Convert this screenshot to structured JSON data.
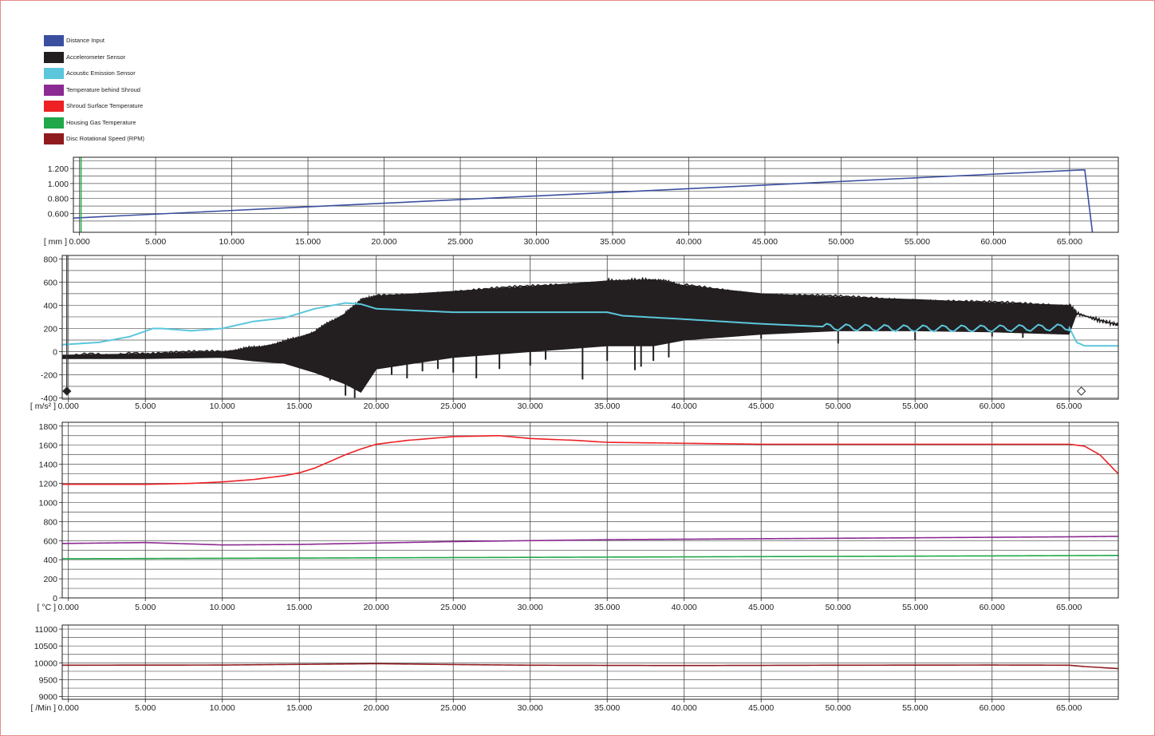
{
  "legend": [
    {
      "label": "Distance Input",
      "color": "#3a4fa0"
    },
    {
      "label": "Accelerometer Sensor",
      "color": "#231f20"
    },
    {
      "label": "Acoustic Emission Sensor",
      "color": "#5bc6dc"
    },
    {
      "label": "Temperature behind Shroud",
      "color": "#8b2a92"
    },
    {
      "label": "Shroud Surface Temperature",
      "color": "#ed2024"
    },
    {
      "label": "Housing Gas Temperature",
      "color": "#20a84a"
    },
    {
      "label": "Disc Rotational Speed (RPM)",
      "color": "#8f1b1f"
    }
  ],
  "chart_data": [
    {
      "type": "line",
      "unit_label": "[ mm ]",
      "xlim": [
        -0.4,
        68.2
      ],
      "ylim": [
        0.35,
        1.35
      ],
      "yticks": [
        0.6,
        0.8,
        1.0,
        1.2
      ],
      "ytick_labels": [
        "0.600",
        "0.800",
        "1.000",
        "1.200"
      ],
      "xticks": [
        0,
        5,
        10,
        15,
        20,
        25,
        30,
        35,
        40,
        45,
        50,
        55,
        60,
        65
      ],
      "xtick_labels": [
        "0.000",
        "5.000",
        "10.000",
        "15.000",
        "20.000",
        "25.000",
        "30.000",
        "35.000",
        "40.000",
        "45.000",
        "50.000",
        "55.000",
        "60.000",
        "65.000"
      ],
      "series": [
        {
          "name": "Distance Input",
          "color": "#3a4fa0",
          "x": [
            -0.4,
            65.7,
            66.0,
            66.5
          ],
          "y": [
            0.54,
            1.18,
            1.18,
            0.35
          ]
        }
      ],
      "marker_line": {
        "x": 0.1,
        "color": "#20a84a"
      }
    },
    {
      "type": "line",
      "unit_label": "[ m/s² ]",
      "xlim": [
        -0.4,
        68.2
      ],
      "ylim": [
        -410,
        830
      ],
      "yticks": [
        -400,
        -200,
        0,
        200,
        400,
        600,
        800
      ],
      "ytick_labels": [
        "-400",
        "-200",
        "0",
        "200",
        "400",
        "600",
        "800"
      ],
      "xticks": [
        0,
        5,
        10,
        15,
        20,
        25,
        30,
        35,
        40,
        45,
        50,
        55,
        60,
        65
      ],
      "xtick_labels": [
        "0.000",
        "5.000",
        "10.000",
        "15.000",
        "20.000",
        "25.000",
        "30.000",
        "35.000",
        "40.000",
        "45.000",
        "50.000",
        "55.000",
        "60.000",
        "65.000"
      ],
      "series": [
        {
          "name": "Accelerometer Sensor",
          "color": "#231f20",
          "x": [
            -0.4,
            5,
            10,
            12,
            14,
            16,
            18,
            19,
            20,
            25,
            30,
            35,
            38,
            40,
            45,
            50,
            55,
            60,
            65,
            65.5,
            67,
            68.2
          ],
          "upper": [
            -30,
            -20,
            0,
            30,
            80,
            170,
            330,
            440,
            480,
            520,
            560,
            610,
            620,
            570,
            500,
            470,
            450,
            420,
            400,
            330,
            270,
            230
          ],
          "lower": [
            -60,
            -60,
            -50,
            -80,
            -100,
            -180,
            -280,
            -350,
            -150,
            -50,
            0,
            50,
            50,
            100,
            150,
            180,
            180,
            170,
            150,
            330,
            270,
            230
          ],
          "spikes": [
            [
              13,
              -80
            ],
            [
              15,
              -120
            ],
            [
              17,
              -250
            ],
            [
              18,
              -380
            ],
            [
              18.6,
              -400
            ],
            [
              19.5,
              -250
            ],
            [
              21,
              -200
            ],
            [
              22,
              -230
            ],
            [
              23,
              -170
            ],
            [
              24,
              -150
            ],
            [
              25,
              -180
            ],
            [
              26.5,
              -230
            ],
            [
              28,
              -150
            ],
            [
              30,
              -120
            ],
            [
              31,
              -70
            ],
            [
              33.4,
              -240
            ],
            [
              35,
              -80
            ],
            [
              36.8,
              -160
            ],
            [
              37.2,
              -130
            ],
            [
              38,
              -80
            ],
            [
              39,
              -50
            ],
            [
              45,
              110
            ],
            [
              50,
              70
            ],
            [
              55,
              100
            ],
            [
              60,
              130
            ],
            [
              62,
              120
            ],
            [
              64,
              170
            ]
          ]
        },
        {
          "name": "Acoustic Emission Sensor",
          "color": "#5bc6dc",
          "x": [
            -0.4,
            2,
            4,
            5.5,
            6,
            8,
            10,
            12,
            14,
            16,
            18,
            19,
            20,
            25,
            30,
            35,
            36,
            40,
            45,
            50,
            55,
            60,
            65,
            65.5,
            66,
            68.2
          ],
          "y": [
            60,
            80,
            130,
            200,
            200,
            180,
            200,
            260,
            290,
            370,
            420,
            410,
            370,
            340,
            340,
            340,
            310,
            280,
            240,
            210,
            200,
            200,
            210,
            80,
            50,
            50
          ],
          "wave_from": 49,
          "wave_to": 65,
          "wave_amp": 28,
          "wave_period": 1.25
        }
      ],
      "markers": [
        {
          "x": -0.1,
          "y": -400,
          "fill": "#231f20"
        },
        {
          "x": 65.8,
          "y": -400,
          "fill": "#ffffff"
        }
      ]
    },
    {
      "type": "line",
      "unit_label": "[ °C ]",
      "xlim": [
        -0.4,
        68.2
      ],
      "ylim": [
        0,
        1840
      ],
      "yticks": [
        0,
        200,
        400,
        600,
        800,
        1000,
        1200,
        1400,
        1600,
        1800
      ],
      "ytick_labels": [
        "0",
        "200",
        "400",
        "600",
        "800",
        "1000",
        "1200",
        "1400",
        "1600",
        "1800"
      ],
      "xticks": [
        0,
        5,
        10,
        15,
        20,
        25,
        30,
        35,
        40,
        45,
        50,
        55,
        60,
        65
      ],
      "xtick_labels": [
        "0.000",
        "5.000",
        "10.000",
        "15.000",
        "20.000",
        "25.000",
        "30.000",
        "35.000",
        "40.000",
        "45.000",
        "50.000",
        "55.000",
        "60.000",
        "65.000"
      ],
      "series": [
        {
          "name": "Shroud Surface Temperature",
          "color": "#ed2024",
          "x": [
            -0.4,
            5,
            8,
            10,
            12,
            14,
            15,
            16,
            17,
            18,
            19,
            20,
            22,
            25,
            28,
            30,
            33,
            35,
            40,
            45,
            50,
            55,
            60,
            65,
            66,
            67,
            68.2
          ],
          "y": [
            1190,
            1190,
            1200,
            1215,
            1240,
            1280,
            1310,
            1360,
            1430,
            1500,
            1560,
            1610,
            1650,
            1690,
            1700,
            1670,
            1650,
            1630,
            1620,
            1610,
            1610,
            1610,
            1610,
            1610,
            1590,
            1500,
            1300
          ]
        },
        {
          "name": "Temperature behind Shroud",
          "color": "#8b2a92",
          "x": [
            -0.4,
            5,
            10,
            15,
            20,
            25,
            30,
            35,
            40,
            45,
            50,
            55,
            60,
            65,
            68.2
          ],
          "y": [
            570,
            580,
            555,
            560,
            575,
            590,
            600,
            610,
            615,
            620,
            625,
            630,
            635,
            640,
            645
          ]
        },
        {
          "name": "Housing Gas Temperature",
          "color": "#20a84a",
          "x": [
            -0.4,
            10,
            20,
            30,
            40,
            50,
            60,
            68.2
          ],
          "y": [
            410,
            415,
            420,
            425,
            430,
            435,
            440,
            445
          ]
        }
      ]
    },
    {
      "type": "line",
      "unit_label": "[ /Min ]",
      "xlim": [
        -0.4,
        68.2
      ],
      "ylim": [
        8920,
        11120
      ],
      "yticks": [
        9000,
        9500,
        10000,
        10500,
        11000
      ],
      "ytick_labels": [
        "9000",
        "9500",
        "10000",
        "10500",
        "11000"
      ],
      "xticks": [
        0,
        5,
        10,
        15,
        20,
        25,
        30,
        35,
        40,
        45,
        50,
        55,
        60,
        65
      ],
      "xtick_labels": [
        "0.000",
        "5.000",
        "10.000",
        "15.000",
        "20.000",
        "25.000",
        "30.000",
        "35.000",
        "40.000",
        "45.000",
        "50.000",
        "55.000",
        "60.000",
        "65.000"
      ],
      "series": [
        {
          "name": "Disc Rotational Speed (RPM)",
          "color": "#8f1b1f",
          "x": [
            -0.4,
            10,
            15,
            20,
            25,
            30,
            40,
            50,
            60,
            65,
            66,
            68.2
          ],
          "y": [
            9930,
            9935,
            9955,
            9975,
            9950,
            9930,
            9920,
            9930,
            9935,
            9930,
            9890,
            9830
          ]
        }
      ]
    }
  ]
}
